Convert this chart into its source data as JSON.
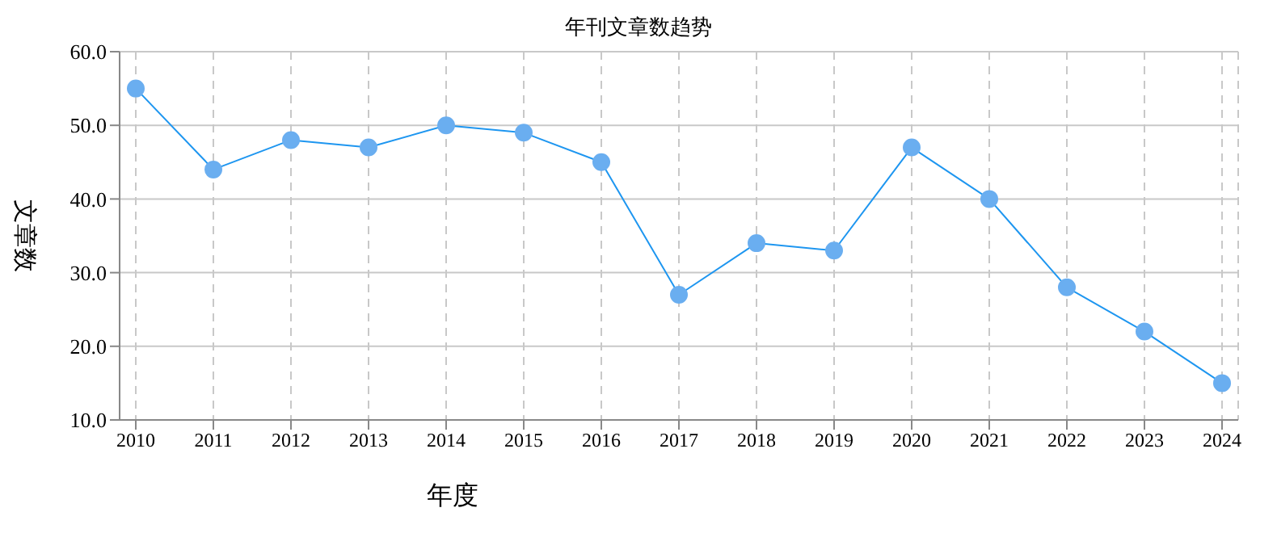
{
  "chart_data": {
    "type": "line",
    "title": "年刊文章数趋势",
    "xlabel": "年度",
    "ylabel": "文章数",
    "categories": [
      "2010",
      "2011",
      "2012",
      "2013",
      "2014",
      "2015",
      "2016",
      "2017",
      "2018",
      "2019",
      "2020",
      "2021",
      "2022",
      "2023",
      "2024"
    ],
    "series": [
      {
        "color": "#1e96f0",
        "values": [
          55,
          44,
          48,
          47,
          50,
          49,
          45,
          27,
          34,
          33,
          47,
          40,
          28,
          22,
          15
        ]
      }
    ],
    "ylim": [
      10,
      60
    ],
    "yticks": [
      {
        "value": 10,
        "label": "10.0"
      },
      {
        "value": 20,
        "label": "20.0"
      },
      {
        "value": 30,
        "label": "30.0"
      },
      {
        "value": 40,
        "label": "40.0"
      },
      {
        "value": 50,
        "label": "50.0"
      },
      {
        "value": 60,
        "label": "60.0"
      }
    ],
    "grid": true,
    "marker": "circle",
    "line_style": "solid"
  }
}
